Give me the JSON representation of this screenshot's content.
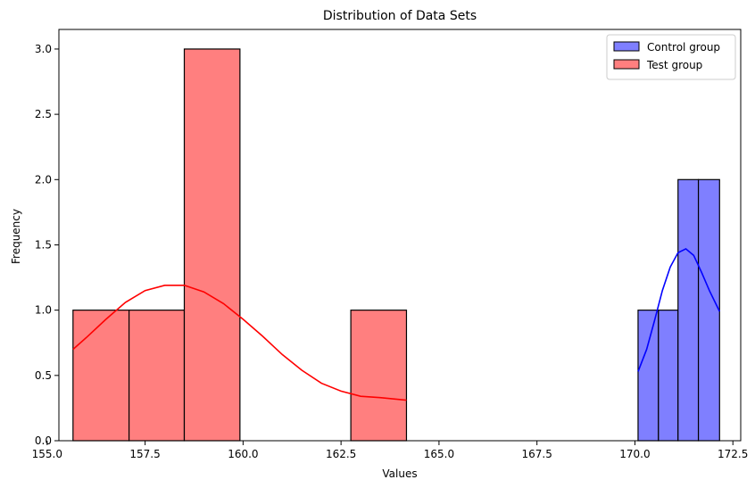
{
  "chart_data": {
    "type": "histogram",
    "title": "Distribution of Data Sets",
    "xlabel": "Values",
    "ylabel": "Frequency",
    "xlim": [
      155.3,
      172.7
    ],
    "ylim": [
      0,
      3.15
    ],
    "x_ticks": [
      155.0,
      157.5,
      160.0,
      162.5,
      165.0,
      167.5,
      170.0,
      172.5
    ],
    "x_tick_labels": [
      "155.0",
      "157.5",
      "160.0",
      "162.5",
      "165.0",
      "167.5",
      "170.0",
      "172.5"
    ],
    "y_ticks": [
      0,
      0.5,
      1.0,
      1.5,
      2.0,
      2.5,
      3.0
    ],
    "y_tick_labels": [
      "0.0",
      "0.5",
      "1.0",
      "1.5",
      "2.0",
      "2.5",
      "3.0"
    ],
    "grid": false,
    "legend_position": "top-right",
    "series": [
      {
        "name": "Control group",
        "color": "#7f7fff",
        "kde_color": "#0000ff",
        "bins": [
          {
            "x0": 170.08,
            "x1": 170.6,
            "count": 1
          },
          {
            "x0": 170.6,
            "x1": 171.1,
            "count": 1
          },
          {
            "x0": 171.1,
            "x1": 171.62,
            "count": 2
          },
          {
            "x0": 171.62,
            "x1": 172.16,
            "count": 2
          }
        ],
        "kde": [
          [
            170.08,
            0.53
          ],
          [
            170.3,
            0.7
          ],
          [
            170.5,
            0.92
          ],
          [
            170.7,
            1.15
          ],
          [
            170.9,
            1.33
          ],
          [
            171.1,
            1.44
          ],
          [
            171.3,
            1.47
          ],
          [
            171.5,
            1.42
          ],
          [
            171.7,
            1.29
          ],
          [
            171.9,
            1.15
          ],
          [
            172.16,
            0.99
          ]
        ]
      },
      {
        "name": "Test group",
        "color": "#ff7f7f",
        "kde_color": "#ff0000",
        "bins": [
          {
            "x0": 155.66,
            "x1": 157.09,
            "count": 1
          },
          {
            "x0": 157.09,
            "x1": 158.5,
            "count": 1
          },
          {
            "x0": 158.5,
            "x1": 159.92,
            "count": 3
          },
          {
            "x0": 162.75,
            "x1": 164.17,
            "count": 1
          }
        ],
        "kde": [
          [
            155.66,
            0.7
          ],
          [
            156.0,
            0.79
          ],
          [
            156.5,
            0.93
          ],
          [
            157.0,
            1.06
          ],
          [
            157.5,
            1.15
          ],
          [
            158.0,
            1.19
          ],
          [
            158.5,
            1.19
          ],
          [
            159.0,
            1.14
          ],
          [
            159.5,
            1.05
          ],
          [
            160.0,
            0.93
          ],
          [
            160.5,
            0.8
          ],
          [
            161.0,
            0.66
          ],
          [
            161.5,
            0.54
          ],
          [
            162.0,
            0.44
          ],
          [
            162.5,
            0.38
          ],
          [
            163.0,
            0.34
          ],
          [
            163.5,
            0.33
          ],
          [
            164.17,
            0.31
          ]
        ]
      }
    ]
  }
}
